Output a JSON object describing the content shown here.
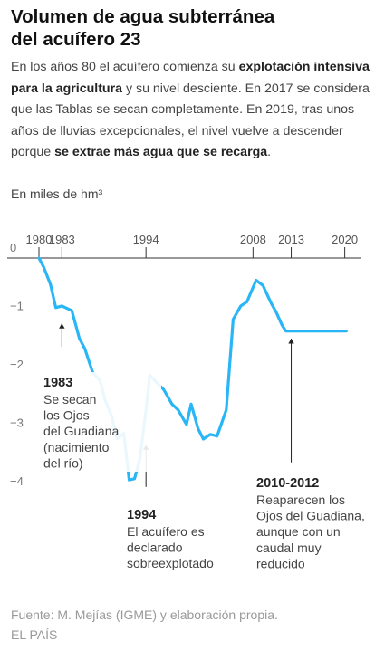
{
  "title_lines": [
    "Volumen de agua subterránea",
    "del acuífero 23"
  ],
  "intro": [
    {
      "t": "En los años 80 el acuífero comienza su ",
      "b": false
    },
    {
      "t": "explotación intensiva para la agricultura",
      "b": true
    },
    {
      "t": " y su nivel desciente. En 2017 se considera que las Tablas se secan completamente. En 2019, tras unos años de lluvias excepcionales, el nivel vuelve a descender porque ",
      "b": false
    },
    {
      "t": "se extrae más agua que se recarga",
      "b": true
    },
    {
      "t": ".",
      "b": false
    }
  ],
  "units": "En miles de hm³",
  "chart_data": {
    "type": "line",
    "title": "Volumen de agua subterránea del acuífero 23",
    "ylabel": "En miles de hm³",
    "ylim": [
      -4,
      0
    ],
    "xlim": [
      1980,
      2020.4
    ],
    "x_ticks": [
      1980,
      1983,
      1994,
      2008,
      2013,
      2020
    ],
    "y_ticks": [
      0,
      -1,
      -2,
      -3,
      -4
    ],
    "y_tick_labels": [
      "0",
      "−1",
      "−2",
      "−3",
      "−4"
    ],
    "grid": "horizontal line at 0 only",
    "color": "#29b6f6",
    "series": [
      {
        "x": [
          1980,
          1980.6,
          1981.5,
          1982.2,
          1983,
          1984.3,
          1985.3,
          1986,
          1987,
          1988,
          1988.7,
          1989.5,
          1990.2,
          1991.1,
          1991.8,
          1992.5,
          1993.2,
          1994,
          1994.5,
          1995.3,
          1996.3,
          1997.4,
          1998.2,
          1999.3,
          1999.9,
          2000.8,
          2001.5,
          2002.4,
          2003.3,
          2004.5,
          2005.4,
          2006.4,
          2007.2,
          2008.4,
          2009.3,
          2010.4,
          2011,
          2011.8,
          2012.3,
          2013,
          2013.6,
          2014.4,
          2015,
          2015.7,
          2016.5,
          2017.2,
          2018.3,
          2019.3,
          2020.2
        ],
        "y": [
          0,
          -0.15,
          -0.45,
          -0.85,
          -0.82,
          -0.9,
          -1.38,
          -1.55,
          -1.95,
          -2.1,
          -2.45,
          -2.7,
          -3.1,
          -3.0,
          -3.8,
          -3.78,
          -3.45,
          -2.6,
          -2.0,
          -2.12,
          -2.25,
          -2.5,
          -2.6,
          -2.85,
          -2.5,
          -2.92,
          -3.1,
          -3.02,
          -3.05,
          -2.6,
          -1.05,
          -0.82,
          -0.75,
          -0.38,
          -0.47,
          -0.78,
          -0.92,
          -1.15,
          -1.25,
          -1.25,
          -1.25,
          -1.25,
          -1.25,
          -1.25,
          -1.25,
          -1.25,
          -1.25,
          -1.25,
          -1.25
        ]
      }
    ],
    "annotations": [
      {
        "year": "1983",
        "lines": [
          "Se secan",
          "los Ojos",
          "del Guadiana",
          "(nacimiento",
          "del río)"
        ]
      },
      {
        "year": "1994",
        "lines": [
          "El acuífero es",
          "declarado",
          "sobreexplotado"
        ]
      },
      {
        "year": "2010-2012",
        "lines": [
          "Reaparecen los",
          "Ojos del Guadiana,",
          "aunque con un",
          "caudal muy",
          "reducido"
        ]
      }
    ]
  },
  "footer": {
    "source": "Fuente: M. Mejías (IGME) y elaboración propia.",
    "brand": "EL PAÍS"
  }
}
